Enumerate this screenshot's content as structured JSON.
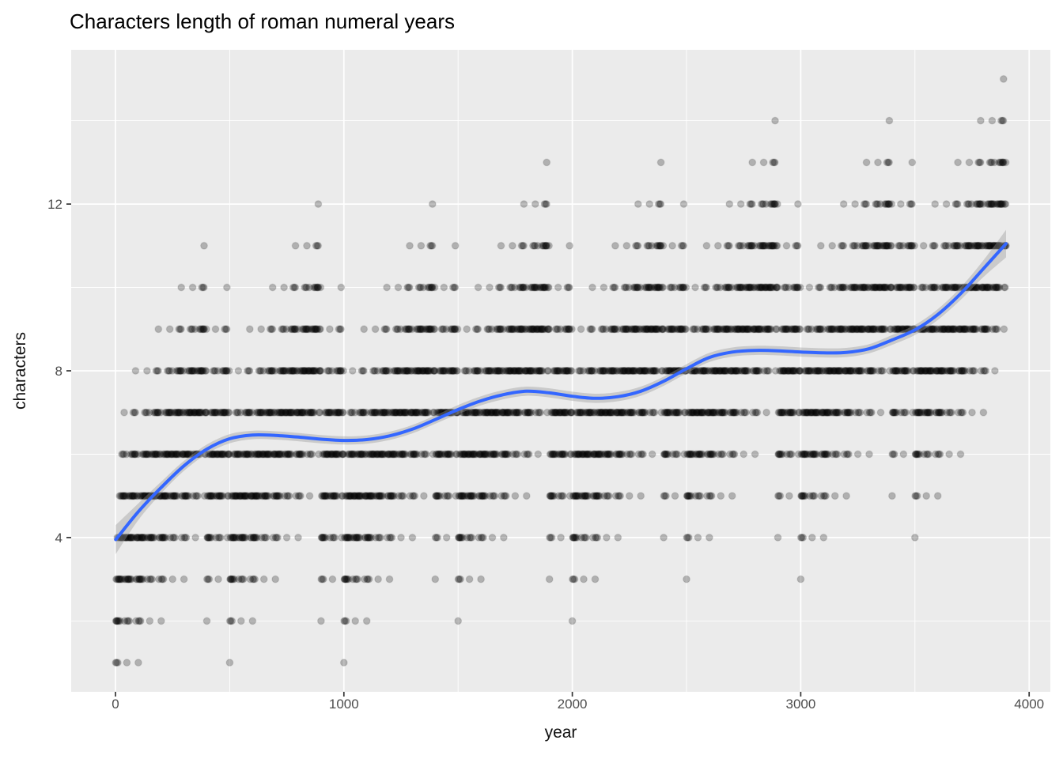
{
  "title": "Characters length of roman numeral years",
  "chart_data": {
    "type": "scatter",
    "title": "Characters length of roman numeral years",
    "xlabel": "year",
    "ylabel": "characters",
    "x_ticks": [
      0,
      1000,
      2000,
      3000,
      4000
    ],
    "x_minor_ticks": [
      500,
      1500,
      2500,
      3500
    ],
    "y_ticks": [
      4,
      8,
      12
    ],
    "y_minor_ticks": [
      2,
      6,
      10,
      14
    ],
    "x_domain": [
      -193.9,
      4092.9
    ],
    "y_domain": [
      0.3,
      15.7
    ],
    "x_range_years": [
      1,
      3899
    ],
    "y_range_chars": [
      1,
      15
    ],
    "grid": true,
    "legend": "none",
    "scatter_rule": "one point per year x in 1..3899; y = number of characters of the Roman numeral for x; y(x) = floor(x/1000) + L[floor(x/100)%10] + L[floor(x/10)%10] + L[x%10]",
    "roman_digit_lengths": [
      0,
      1,
      2,
      3,
      2,
      1,
      2,
      3,
      4,
      2
    ],
    "notable_points": [
      {
        "year": 3888,
        "chars": 15
      },
      {
        "year": 2888,
        "chars": 14
      },
      {
        "year": 3388,
        "chars": 14
      },
      {
        "year": 1888,
        "chars": 13
      },
      {
        "year": 888,
        "chars": 12
      },
      {
        "year": 1,
        "chars": 1
      },
      {
        "year": 1000,
        "chars": 1
      }
    ],
    "smooth": {
      "name": "loess fit with confidence ribbon",
      "x": [
        1,
        100,
        200,
        300,
        400,
        500,
        600,
        700,
        800,
        900,
        1000,
        1100,
        1200,
        1300,
        1400,
        1500,
        1600,
        1700,
        1800,
        1900,
        2000,
        2100,
        2200,
        2300,
        2400,
        2500,
        2600,
        2700,
        2800,
        2900,
        3000,
        3100,
        3200,
        3300,
        3400,
        3500,
        3600,
        3700,
        3800,
        3899
      ],
      "y": [
        3.95,
        4.62,
        5.2,
        5.72,
        6.12,
        6.37,
        6.46,
        6.45,
        6.41,
        6.36,
        6.33,
        6.35,
        6.44,
        6.6,
        6.83,
        7.07,
        7.28,
        7.43,
        7.51,
        7.47,
        7.39,
        7.34,
        7.38,
        7.51,
        7.75,
        8.05,
        8.32,
        8.45,
        8.49,
        8.48,
        8.45,
        8.43,
        8.44,
        8.53,
        8.74,
        8.98,
        9.35,
        9.85,
        10.45,
        11.05
      ],
      "se": [
        0.35,
        0.2,
        0.14,
        0.12,
        0.11,
        0.11,
        0.1,
        0.1,
        0.1,
        0.1,
        0.1,
        0.1,
        0.1,
        0.1,
        0.1,
        0.11,
        0.11,
        0.11,
        0.11,
        0.11,
        0.11,
        0.11,
        0.11,
        0.11,
        0.11,
        0.11,
        0.11,
        0.11,
        0.11,
        0.11,
        0.11,
        0.11,
        0.11,
        0.11,
        0.12,
        0.12,
        0.13,
        0.15,
        0.2,
        0.33
      ]
    }
  },
  "style": {
    "panel_fill": "#EBEBEB",
    "grid_color": "#FFFFFF",
    "smooth_line_color": "#3366FF",
    "ribbon_color": "#999999",
    "ribbon_opacity": 0.4,
    "point_color": "#000000",
    "point_fill_opacity": 0.25,
    "point_stroke_opacity": 0.1,
    "axis_text_color": "#4D4D4D",
    "tick_mark_color": "#333333",
    "title_color": "#000000",
    "axis_title_color": "#111111",
    "background": "#FFFFFF"
  }
}
